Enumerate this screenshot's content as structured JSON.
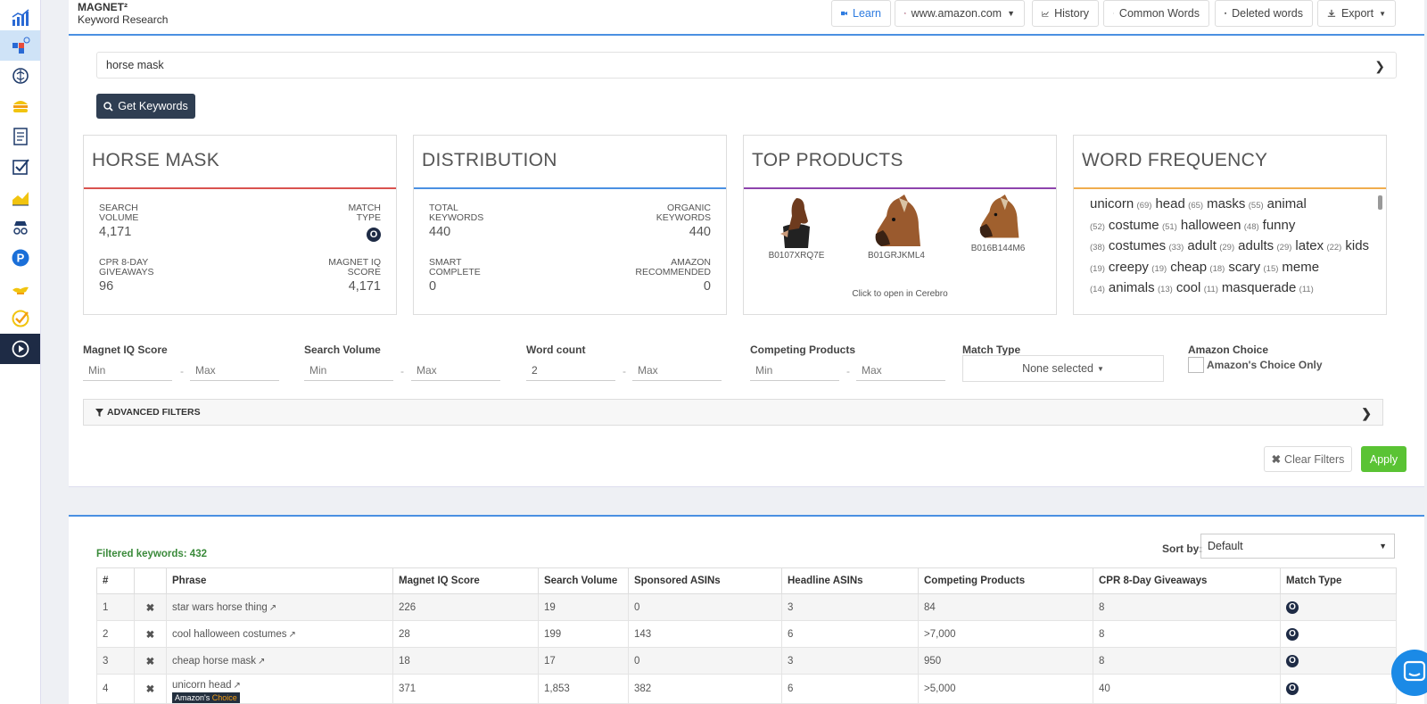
{
  "header": {
    "brand_name": "MAGNET²",
    "brand_sub": "Keyword Research",
    "buttons": {
      "learn": "Learn",
      "marketplace": "www.amazon.com",
      "history": "History",
      "common_words": "Common Words",
      "deleted_words": "Deleted words",
      "export": "Export"
    }
  },
  "search": {
    "value": "horse mask"
  },
  "get_keywords": "Get Keywords",
  "cards": {
    "keyword": {
      "title": "HORSE MASK",
      "search_volume_label": "SEARCH VOLUME",
      "search_volume": "4,171",
      "match_type_label": "MATCH TYPE",
      "match_type_badge": "O",
      "cpr_label": "CPR 8-DAY GIVEAWAYS",
      "cpr": "96",
      "miq_label": "MAGNET IQ SCORE",
      "miq": "4,171"
    },
    "distribution": {
      "title": "DISTRIBUTION",
      "total_label": "TOTAL KEYWORDS",
      "total": "440",
      "organic_label": "ORGANIC KEYWORDS",
      "organic": "440",
      "smart_label": "SMART COMPLETE",
      "smart": "0",
      "amazon_rec_label": "AMAZON RECOMMENDED",
      "amazon_rec": "0"
    },
    "top_products": {
      "title": "TOP PRODUCTS",
      "products": [
        "B0107XRQ7E",
        "B01GRJKML4",
        "B016B144M6"
      ],
      "cerebro": "Click to open in Cerebro"
    },
    "word_frequency": {
      "title": "WORD FREQUENCY",
      "words": [
        {
          "w": "unicorn",
          "c": "(69)"
        },
        {
          "w": "head",
          "c": "(65)"
        },
        {
          "w": "masks",
          "c": "(55)"
        },
        {
          "w": "animal",
          "c": "(52)"
        },
        {
          "w": "costume",
          "c": "(51)"
        },
        {
          "w": "halloween",
          "c": "(48)"
        },
        {
          "w": "funny",
          "c": "(38)"
        },
        {
          "w": "costumes",
          "c": "(33)"
        },
        {
          "w": "adult",
          "c": "(29)"
        },
        {
          "w": "adults",
          "c": "(29)"
        },
        {
          "w": "latex",
          "c": "(22)"
        },
        {
          "w": "kids",
          "c": "(19)"
        },
        {
          "w": "creepy",
          "c": "(19)"
        },
        {
          "w": "cheap",
          "c": "(18)"
        },
        {
          "w": "scary",
          "c": "(15)"
        },
        {
          "w": "meme",
          "c": "(14)"
        },
        {
          "w": "animals",
          "c": "(13)"
        },
        {
          "w": "cool",
          "c": "(11)"
        },
        {
          "w": "masquerade",
          "c": "(11)"
        }
      ]
    }
  },
  "filters": {
    "miq": {
      "label": "Magnet IQ Score",
      "min": "Min",
      "max": "Max"
    },
    "sv": {
      "label": "Search Volume",
      "min": "Min",
      "max": "Max"
    },
    "wc": {
      "label": "Word count",
      "min_value": "2",
      "max": "Max"
    },
    "cp": {
      "label": "Competing Products",
      "min": "Min",
      "max": "Max"
    },
    "mt": {
      "label": "Match Type",
      "value": "None selected"
    },
    "ac": {
      "label": "Amazon Choice",
      "checkbox": "Amazon's Choice Only"
    },
    "dash": "-",
    "advanced": "ADVANCED FILTERS",
    "clear": "Clear Filters",
    "apply": "Apply"
  },
  "results": {
    "filtered": "Filtered keywords: 432",
    "sort_label": "Sort by:",
    "sort_value": "Default",
    "columns": [
      "#",
      "",
      "Phrase",
      "Magnet IQ Score",
      "Search Volume",
      "Sponsored ASINs",
      "Headline ASINs",
      "Competing Products",
      "CPR 8-Day Giveaways",
      "Match Type"
    ],
    "rows": [
      {
        "n": "1",
        "phrase": "star wars horse thing",
        "miq": "226",
        "sv": "19",
        "sp": "0",
        "hl": "3",
        "cp": "84",
        "cpr": "8",
        "mt": "O",
        "ac": false
      },
      {
        "n": "2",
        "phrase": "cool halloween costumes",
        "miq": "28",
        "sv": "199",
        "sp": "143",
        "hl": "6",
        "cp": ">7,000",
        "cpr": "8",
        "mt": "O",
        "ac": false
      },
      {
        "n": "3",
        "phrase": "cheap horse mask",
        "miq": "18",
        "sv": "17",
        "sp": "0",
        "hl": "3",
        "cp": "950",
        "cpr": "8",
        "mt": "O",
        "ac": false
      },
      {
        "n": "4",
        "phrase": "unicorn head",
        "miq": "371",
        "sv": "1,853",
        "sp": "382",
        "hl": "6",
        "cp": ">5,000",
        "cpr": "40",
        "mt": "O",
        "ac": true
      }
    ],
    "ac_badge_a": "Amazon's",
    "ac_badge_b": "Choice",
    "remove_mark": "✖"
  },
  "colors": {
    "accent": "#4a90e2",
    "dark": "#1e2b45",
    "green": "#5ac334",
    "red_rule": "#d9534f",
    "purple_rule": "#8e44ad",
    "orange_rule": "#f0ad4e"
  }
}
